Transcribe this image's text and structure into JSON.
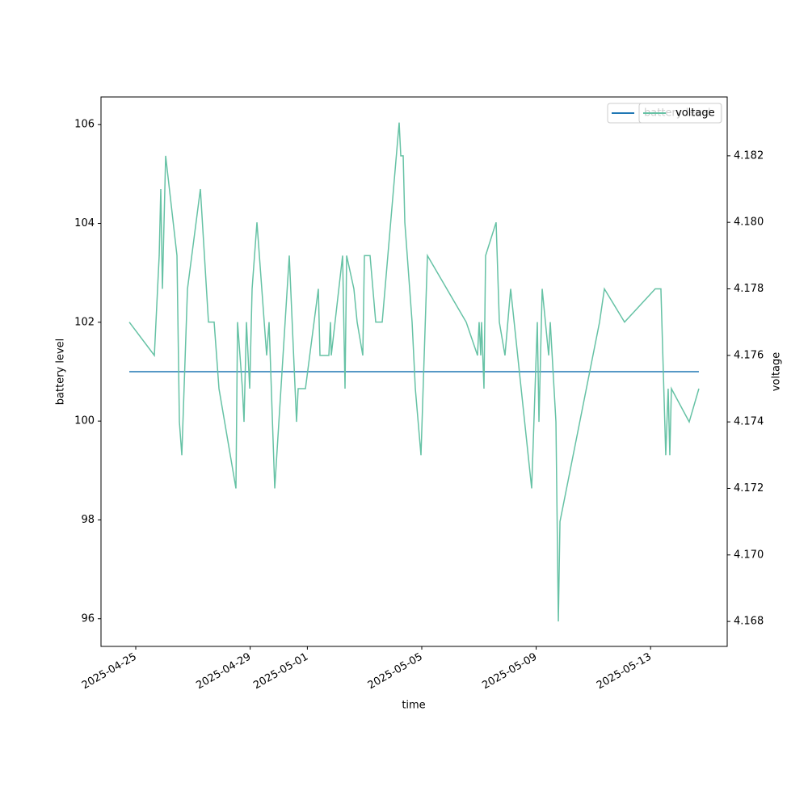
{
  "chart_data": {
    "type": "line",
    "xlabel": "time",
    "ylabel": "battery level",
    "y2label": "voltage",
    "x": [
      "2025-04-24T18:35",
      "2025-04-25T15:36",
      "2025-04-25T19:40",
      "2025-04-25T21:00",
      "2025-04-25T22:22",
      "2025-04-26T01:05",
      "2025-04-26T10:35",
      "2025-04-26T12:37",
      "2025-04-26T14:39",
      "2025-04-26T19:24",
      "2025-04-27T06:14",
      "2025-04-27T13:01",
      "2025-04-27T17:46",
      "2025-04-27T21:50",
      "2025-04-28T12:04",
      "2025-04-28T13:25",
      "2025-04-28T17:30",
      "2025-04-28T18:51",
      "2025-04-28T20:53",
      "2025-04-28T23:36",
      "2025-04-29T01:38",
      "2025-04-29T05:42",
      "2025-04-29T13:50",
      "2025-04-29T15:52",
      "2025-04-29T20:37",
      "2025-04-30T08:49",
      "2025-04-30T14:55",
      "2025-04-30T16:17",
      "2025-04-30T22:23",
      "2025-05-01T09:13",
      "2025-05-01T10:35",
      "2025-05-01T18:02",
      "2025-05-01T19:23",
      "2025-05-01T20:04",
      "2025-05-02T05:34",
      "2025-05-02T07:36",
      "2025-05-02T08:57",
      "2025-05-02T15:03",
      "2025-05-02T17:46",
      "2025-05-02T22:31",
      "2025-05-02T23:52",
      "2025-05-03T04:37",
      "2025-05-03T09:22",
      "2025-05-03T14:48",
      "2025-05-04T05:02",
      "2025-05-04T06:23",
      "2025-05-04T08:25",
      "2025-05-04T09:47",
      "2025-05-04T15:53",
      "2025-05-04T18:36",
      "2025-05-04T23:20",
      "2025-05-05T04:46",
      "2025-05-06T13:17",
      "2025-05-06T22:47",
      "2025-05-07T00:08",
      "2025-05-07T01:29",
      "2025-05-07T02:10",
      "2025-05-07T04:12",
      "2025-05-07T05:34",
      "2025-05-07T14:23",
      "2025-05-07T17:06",
      "2025-05-07T21:50",
      "2025-05-08T02:35",
      "2025-05-08T20:13",
      "2025-05-09T00:58",
      "2025-05-09T02:20",
      "2025-05-09T05:03",
      "2025-05-09T10:29",
      "2025-05-09T11:50",
      "2025-05-09T16:35",
      "2025-05-09T18:37",
      "2025-05-09T19:58",
      "2025-05-11T05:11",
      "2025-05-11T09:15",
      "2025-05-12T02:10",
      "2025-05-13T03:55",
      "2025-05-13T08:40",
      "2025-05-13T12:44",
      "2025-05-13T14:46",
      "2025-05-13T16:08",
      "2025-05-13T17:29",
      "2025-05-14T08:25",
      "2025-05-14T16:32"
    ],
    "series": [
      {
        "name": "battery level",
        "color": "#1f77b4",
        "axis": "y",
        "values": [
          101,
          101,
          101,
          101,
          101,
          101,
          101,
          101,
          101,
          101,
          101,
          101,
          101,
          101,
          101,
          101,
          101,
          101,
          101,
          101,
          101,
          101,
          101,
          101,
          101,
          101,
          101,
          101,
          101,
          101,
          101,
          101,
          101,
          101,
          101,
          101,
          101,
          101,
          101,
          101,
          101,
          101,
          101,
          101,
          101,
          101,
          101,
          101,
          101,
          101,
          101,
          101,
          101,
          101,
          101,
          101,
          101,
          101,
          101,
          101,
          101,
          101,
          101,
          101,
          101,
          101,
          101,
          101,
          101,
          101,
          101,
          101,
          101,
          101,
          101,
          101,
          101,
          101,
          101,
          101,
          101,
          101,
          101
        ]
      },
      {
        "name": "voltage",
        "color": "#66c2a5",
        "axis": "y2",
        "values": [
          4.177,
          4.176,
          4.179,
          4.181,
          4.178,
          4.182,
          4.179,
          4.174,
          4.173,
          4.178,
          4.181,
          4.177,
          4.177,
          4.175,
          4.172,
          4.177,
          4.175,
          4.174,
          4.177,
          4.175,
          4.178,
          4.18,
          4.176,
          4.177,
          4.172,
          4.179,
          4.174,
          4.175,
          4.175,
          4.178,
          4.176,
          4.176,
          4.177,
          4.176,
          4.179,
          4.175,
          4.179,
          4.178,
          4.177,
          4.176,
          4.179,
          4.179,
          4.177,
          4.177,
          4.183,
          4.182,
          4.182,
          4.18,
          4.177,
          4.175,
          4.173,
          4.179,
          4.177,
          4.176,
          4.177,
          4.176,
          4.177,
          4.175,
          4.179,
          4.18,
          4.177,
          4.176,
          4.178,
          4.172,
          4.177,
          4.174,
          4.178,
          4.176,
          4.177,
          4.174,
          4.168,
          4.171,
          4.177,
          4.178,
          4.177,
          4.178,
          4.178,
          4.173,
          4.175,
          4.173,
          4.175,
          4.174,
          4.175
        ]
      }
    ],
    "xlim": [
      "2025-04-23T18:50",
      "2025-05-15T16:18"
    ],
    "xticks": [
      "2025-04-25",
      "2025-04-29",
      "2025-05-01",
      "2025-05-05",
      "2025-05-09",
      "2025-05-13"
    ],
    "ylim": [
      95.44,
      106.56
    ],
    "yticks": [
      96,
      98,
      100,
      102,
      104,
      106
    ],
    "y2lim": [
      4.16725,
      4.18377
    ],
    "y2ticks": [
      4.168,
      {
        "value": 4.17,
        "label": "4.170"
      },
      4.172,
      4.174,
      4.176,
      4.178,
      {
        "value": 4.18,
        "label": "4.180"
      },
      4.182
    ],
    "legend": "upper right"
  }
}
